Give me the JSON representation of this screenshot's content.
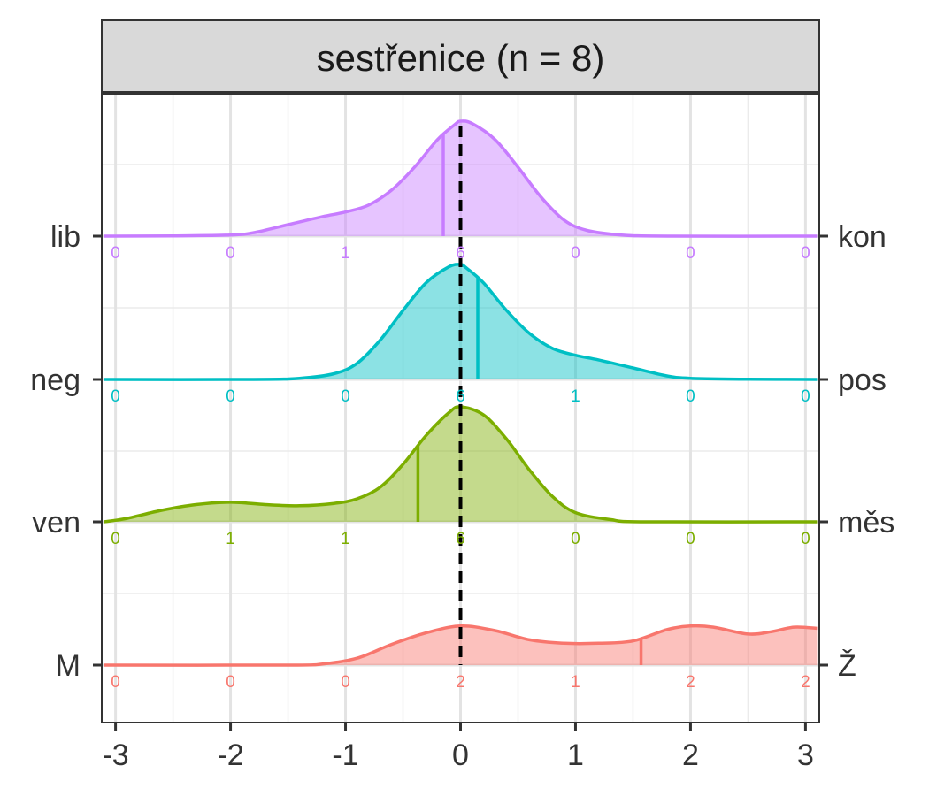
{
  "chart_data": {
    "type": "ridgeline-density",
    "facet_title": "sestřenice (n = 8)",
    "xlim": [
      -3.12,
      3.12
    ],
    "x_ticks": [
      -3,
      -2,
      -1,
      0,
      1,
      2,
      3
    ],
    "x_tick_labels": [
      "-3",
      "-2",
      "-1",
      "0",
      "1",
      "2",
      "3"
    ],
    "reference_line_x": 0,
    "grid": true,
    "bin_positions": [
      -3,
      -2,
      -1,
      0,
      1,
      2,
      3
    ],
    "series": [
      {
        "left_label": "lib",
        "right_label": "kon",
        "color": "#C77CFF",
        "mean": -0.15,
        "counts": [
          0,
          0,
          1,
          6,
          0,
          0,
          0
        ],
        "density": [
          [
            -3.1,
            0.0
          ],
          [
            -2.5,
            0.002
          ],
          [
            -2.0,
            0.01
          ],
          [
            -1.8,
            0.03
          ],
          [
            -1.5,
            0.1
          ],
          [
            -1.2,
            0.17
          ],
          [
            -1.0,
            0.21
          ],
          [
            -0.8,
            0.27
          ],
          [
            -0.6,
            0.4
          ],
          [
            -0.4,
            0.6
          ],
          [
            -0.2,
            0.84
          ],
          [
            -0.05,
            0.97
          ],
          [
            0.0,
            1.0
          ],
          [
            0.1,
            0.98
          ],
          [
            0.3,
            0.84
          ],
          [
            0.5,
            0.6
          ],
          [
            0.7,
            0.34
          ],
          [
            0.9,
            0.14
          ],
          [
            1.1,
            0.05
          ],
          [
            1.4,
            0.01
          ],
          [
            1.8,
            0.0
          ],
          [
            3.1,
            0.0
          ]
        ]
      },
      {
        "left_label": "neg",
        "right_label": "pos",
        "color": "#00BFC4",
        "mean": 0.15,
        "counts": [
          0,
          0,
          0,
          6,
          1,
          0,
          0
        ],
        "density": [
          [
            -3.1,
            0.0
          ],
          [
            -1.8,
            0.0
          ],
          [
            -1.4,
            0.01
          ],
          [
            -1.1,
            0.05
          ],
          [
            -0.9,
            0.14
          ],
          [
            -0.7,
            0.34
          ],
          [
            -0.5,
            0.6
          ],
          [
            -0.3,
            0.84
          ],
          [
            -0.1,
            0.98
          ],
          [
            0.0,
            1.0
          ],
          [
            0.05,
            0.97
          ],
          [
            0.2,
            0.84
          ],
          [
            0.4,
            0.6
          ],
          [
            0.6,
            0.4
          ],
          [
            0.8,
            0.27
          ],
          [
            1.0,
            0.21
          ],
          [
            1.2,
            0.17
          ],
          [
            1.5,
            0.1
          ],
          [
            1.8,
            0.03
          ],
          [
            2.0,
            0.01
          ],
          [
            2.5,
            0.002
          ],
          [
            3.1,
            0.0
          ]
        ]
      },
      {
        "left_label": "ven",
        "right_label": "měs",
        "color": "#7CAE00",
        "mean": -0.37,
        "counts": [
          0,
          1,
          1,
          6,
          0,
          0,
          0
        ],
        "density": [
          [
            -3.1,
            0.0
          ],
          [
            -2.9,
            0.03
          ],
          [
            -2.6,
            0.1
          ],
          [
            -2.3,
            0.15
          ],
          [
            -2.0,
            0.17
          ],
          [
            -1.7,
            0.15
          ],
          [
            -1.4,
            0.14
          ],
          [
            -1.1,
            0.16
          ],
          [
            -0.9,
            0.2
          ],
          [
            -0.7,
            0.3
          ],
          [
            -0.5,
            0.5
          ],
          [
            -0.3,
            0.75
          ],
          [
            -0.1,
            0.95
          ],
          [
            0.0,
            1.0
          ],
          [
            0.2,
            0.93
          ],
          [
            0.4,
            0.72
          ],
          [
            0.6,
            0.45
          ],
          [
            0.8,
            0.22
          ],
          [
            1.0,
            0.08
          ],
          [
            1.3,
            0.02
          ],
          [
            1.6,
            0.0
          ],
          [
            3.1,
            0.0
          ]
        ]
      },
      {
        "left_label": "M",
        "right_label": "Ž",
        "color": "#F8766D",
        "mean": 1.57,
        "counts": [
          0,
          0,
          0,
          2,
          1,
          2,
          2
        ],
        "density": [
          [
            -3.1,
            0.0
          ],
          [
            -1.5,
            0.0
          ],
          [
            -1.2,
            0.01
          ],
          [
            -0.9,
            0.06
          ],
          [
            -0.6,
            0.18
          ],
          [
            -0.3,
            0.28
          ],
          [
            0.0,
            0.34
          ],
          [
            0.3,
            0.3
          ],
          [
            0.6,
            0.22
          ],
          [
            0.9,
            0.19
          ],
          [
            1.2,
            0.19
          ],
          [
            1.5,
            0.21
          ],
          [
            1.8,
            0.31
          ],
          [
            2.0,
            0.34
          ],
          [
            2.2,
            0.33
          ],
          [
            2.5,
            0.27
          ],
          [
            2.7,
            0.29
          ],
          [
            2.9,
            0.33
          ],
          [
            3.1,
            0.32
          ]
        ]
      }
    ]
  }
}
